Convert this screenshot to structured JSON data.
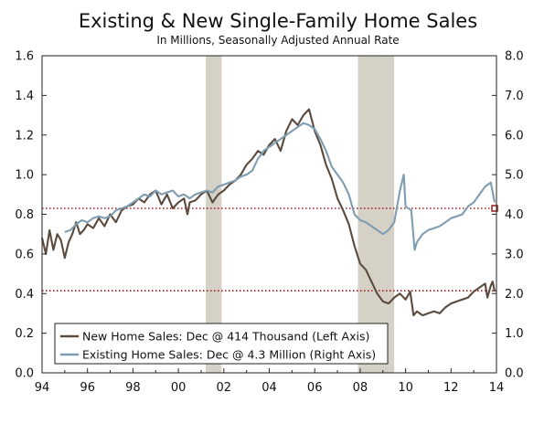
{
  "chart_data": {
    "type": "line",
    "title": "Existing & New Single-Family Home Sales",
    "subtitle": "In Millions, Seasonally Adjusted Annual Rate",
    "x_range": [
      1994.0,
      2014.0
    ],
    "x_ticks": [
      {
        "value": 1994,
        "label": "94"
      },
      {
        "value": 1996,
        "label": "96"
      },
      {
        "value": 1998,
        "label": "98"
      },
      {
        "value": 2000,
        "label": "00"
      },
      {
        "value": 2002,
        "label": "02"
      },
      {
        "value": 2004,
        "label": "04"
      },
      {
        "value": 2006,
        "label": "06"
      },
      {
        "value": 2008,
        "label": "08"
      },
      {
        "value": 2010,
        "label": "10"
      },
      {
        "value": 2012,
        "label": "12"
      },
      {
        "value": 2014,
        "label": "14"
      }
    ],
    "y_left": {
      "range": [
        0.0,
        1.6
      ],
      "ticks": [
        "0.0",
        "0.2",
        "0.4",
        "0.6",
        "0.8",
        "1.0",
        "1.2",
        "1.4",
        "1.6"
      ]
    },
    "y_right": {
      "range": [
        0.0,
        8.0
      ],
      "ticks": [
        "0.0",
        "1.0",
        "2.0",
        "3.0",
        "4.0",
        "5.0",
        "6.0",
        "7.0",
        "8.0"
      ]
    },
    "grid": false,
    "legend_position": "bottom-left",
    "recessions": [
      [
        2001.2,
        2001.9
      ],
      [
        2007.9,
        2009.5
      ]
    ],
    "reference_lines": [
      {
        "axis": "left",
        "value": 0.414,
        "color": "#9b1b1b"
      },
      {
        "axis": "left",
        "value": 0.83,
        "color": "#9b1b1b"
      }
    ],
    "end_marker": {
      "x": 2013.92,
      "y_left": 0.83
    },
    "series": [
      {
        "name": "New Home Sales: Dec @ 414 Thousand (Left Axis)",
        "axis": "left",
        "color": "#5b4a3e",
        "x": [
          1994.0,
          1994.17,
          1994.33,
          1994.5,
          1994.67,
          1994.83,
          1995.0,
          1995.17,
          1995.33,
          1995.5,
          1995.67,
          1995.83,
          1996.0,
          1996.25,
          1996.5,
          1996.75,
          1997.0,
          1997.25,
          1997.5,
          1997.75,
          1998.0,
          1998.25,
          1998.5,
          1998.75,
          1999.0,
          1999.25,
          1999.5,
          1999.75,
          2000.0,
          2000.25,
          2000.4,
          2000.5,
          2000.75,
          2001.0,
          2001.25,
          2001.5,
          2001.75,
          2002.0,
          2002.25,
          2002.5,
          2002.75,
          2003.0,
          2003.25,
          2003.5,
          2003.75,
          2004.0,
          2004.25,
          2004.5,
          2004.75,
          2005.0,
          2005.25,
          2005.5,
          2005.75,
          2006.0,
          2006.25,
          2006.5,
          2006.75,
          2007.0,
          2007.25,
          2007.5,
          2007.75,
          2008.0,
          2008.25,
          2008.5,
          2008.75,
          2009.0,
          2009.25,
          2009.5,
          2009.75,
          2010.0,
          2010.2,
          2010.35,
          2010.5,
          2010.75,
          2011.0,
          2011.25,
          2011.5,
          2011.75,
          2012.0,
          2012.25,
          2012.5,
          2012.75,
          2013.0,
          2013.25,
          2013.5,
          2013.6,
          2013.75,
          2013.83,
          2013.92
        ],
        "values": [
          0.68,
          0.6,
          0.72,
          0.62,
          0.7,
          0.67,
          0.58,
          0.66,
          0.7,
          0.76,
          0.7,
          0.72,
          0.75,
          0.73,
          0.78,
          0.74,
          0.8,
          0.76,
          0.82,
          0.84,
          0.85,
          0.88,
          0.86,
          0.9,
          0.92,
          0.85,
          0.9,
          0.83,
          0.86,
          0.88,
          0.8,
          0.86,
          0.87,
          0.9,
          0.92,
          0.86,
          0.9,
          0.92,
          0.95,
          0.97,
          1.0,
          1.05,
          1.08,
          1.12,
          1.1,
          1.15,
          1.18,
          1.12,
          1.22,
          1.28,
          1.25,
          1.3,
          1.33,
          1.22,
          1.15,
          1.05,
          0.98,
          0.88,
          0.82,
          0.75,
          0.64,
          0.55,
          0.52,
          0.46,
          0.4,
          0.36,
          0.35,
          0.38,
          0.4,
          0.37,
          0.41,
          0.29,
          0.31,
          0.29,
          0.3,
          0.31,
          0.3,
          0.33,
          0.35,
          0.36,
          0.37,
          0.38,
          0.41,
          0.43,
          0.45,
          0.38,
          0.44,
          0.46,
          0.41
        ]
      },
      {
        "name": "Existing Home Sales: Dec @ 4.3 Million (Right Axis)",
        "axis": "right",
        "color": "#7f9db1",
        "x": [
          1995.0,
          1995.25,
          1995.5,
          1995.75,
          1996.0,
          1996.25,
          1996.5,
          1996.75,
          1997.0,
          1997.25,
          1997.5,
          1997.75,
          1998.0,
          1998.25,
          1998.5,
          1998.75,
          1999.0,
          1999.25,
          1999.5,
          1999.75,
          2000.0,
          2000.25,
          2000.5,
          2000.75,
          2001.0,
          2001.25,
          2001.5,
          2001.75,
          2002.0,
          2002.25,
          2002.5,
          2002.75,
          2003.0,
          2003.25,
          2003.5,
          2003.75,
          2004.0,
          2004.25,
          2004.5,
          2004.75,
          2005.0,
          2005.25,
          2005.5,
          2005.75,
          2006.0,
          2006.25,
          2006.5,
          2006.75,
          2007.0,
          2007.25,
          2007.5,
          2007.75,
          2008.0,
          2008.25,
          2008.5,
          2008.75,
          2009.0,
          2009.25,
          2009.5,
          2009.75,
          2009.92,
          2010.0,
          2010.25,
          2010.4,
          2010.5,
          2010.75,
          2011.0,
          2011.25,
          2011.5,
          2011.75,
          2012.0,
          2012.25,
          2012.5,
          2012.75,
          2013.0,
          2013.25,
          2013.5,
          2013.75,
          2013.92
        ],
        "values": [
          3.55,
          3.6,
          3.75,
          3.85,
          3.8,
          3.9,
          3.95,
          3.9,
          3.95,
          4.1,
          4.15,
          4.2,
          4.3,
          4.4,
          4.5,
          4.45,
          4.6,
          4.5,
          4.55,
          4.6,
          4.45,
          4.5,
          4.4,
          4.5,
          4.55,
          4.6,
          4.55,
          4.7,
          4.75,
          4.8,
          4.85,
          4.95,
          5.0,
          5.1,
          5.4,
          5.6,
          5.7,
          5.8,
          5.9,
          6.0,
          6.1,
          6.2,
          6.3,
          6.25,
          6.15,
          5.9,
          5.6,
          5.2,
          5.0,
          4.8,
          4.5,
          4.0,
          3.85,
          3.8,
          3.7,
          3.6,
          3.5,
          3.6,
          3.8,
          4.6,
          5.0,
          4.2,
          4.1,
          3.1,
          3.3,
          3.5,
          3.6,
          3.65,
          3.7,
          3.8,
          3.9,
          3.95,
          4.0,
          4.2,
          4.3,
          4.5,
          4.7,
          4.8,
          4.3
        ]
      }
    ]
  }
}
